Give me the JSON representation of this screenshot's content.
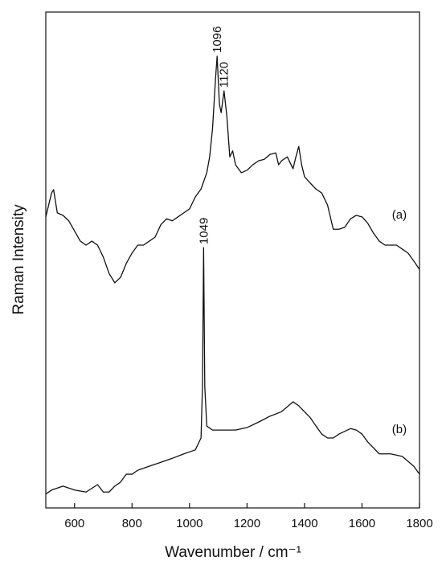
{
  "chart_data": {
    "type": "line",
    "xlabel": "Wavenumber / cm⁻¹",
    "ylabel": "Raman Intensity",
    "xlim": [
      500,
      1800
    ],
    "xticks": [
      600,
      800,
      1000,
      1200,
      1400,
      1600,
      1800
    ],
    "ylim": [
      0,
      100
    ],
    "series": [
      {
        "name": "(a)",
        "color": "#111111",
        "x": [
          500,
          520,
          527,
          540,
          560,
          580,
          620,
          640,
          660,
          680,
          700,
          720,
          740,
          760,
          780,
          800,
          820,
          840,
          860,
          880,
          900,
          920,
          940,
          960,
          980,
          1000,
          1020,
          1040,
          1060,
          1070,
          1080,
          1090,
          1096,
          1104,
          1110,
          1120,
          1130,
          1140,
          1150,
          1160,
          1180,
          1200,
          1220,
          1240,
          1260,
          1280,
          1300,
          1310,
          1320,
          1340,
          1360,
          1370,
          1380,
          1390,
          1400,
          1420,
          1440,
          1460,
          1480,
          1500,
          1520,
          1540,
          1560,
          1580,
          1600,
          1620,
          1640,
          1660,
          1680,
          1700,
          1720,
          1740,
          1760,
          1780,
          1800
        ],
        "values": [
          58.7,
          63.5,
          64.2,
          59.5,
          59.0,
          57.9,
          53.8,
          53.0,
          53.8,
          53.0,
          50.6,
          47.3,
          45.4,
          46.5,
          49.3,
          51.4,
          53.0,
          53.0,
          53.8,
          54.6,
          57.1,
          58.3,
          57.9,
          58.7,
          59.5,
          60.3,
          62.7,
          64.3,
          67.6,
          70.8,
          76.5,
          86.2,
          91.1,
          81.4,
          79.7,
          84.1,
          78.9,
          70.8,
          72.0,
          69.2,
          67.6,
          68.1,
          69.2,
          70.0,
          70.3,
          71.3,
          71.6,
          69.2,
          70.0,
          70.8,
          68.4,
          70.8,
          72.9,
          69.2,
          66.8,
          65.5,
          64.3,
          63.5,
          61.1,
          56.2,
          56.2,
          56.6,
          58.3,
          59.0,
          58.7,
          57.4,
          55.4,
          53.8,
          53.0,
          53.0,
          53.0,
          52.2,
          51.4,
          49.8,
          48.1
        ]
      },
      {
        "name": "(b)",
        "color": "#111111",
        "x": [
          500,
          520,
          560,
          600,
          640,
          680,
          700,
          720,
          740,
          760,
          780,
          800,
          820,
          860,
          900,
          940,
          980,
          1020,
          1040,
          1045,
          1049,
          1053,
          1060,
          1080,
          1120,
          1160,
          1200,
          1240,
          1280,
          1320,
          1360,
          1380,
          1400,
          1420,
          1440,
          1460,
          1480,
          1500,
          1520,
          1560,
          1580,
          1600,
          1620,
          1660,
          1700,
          1740,
          1780,
          1800
        ],
        "values": [
          2.8,
          3.6,
          4.4,
          3.6,
          3.2,
          4.7,
          3.2,
          3.2,
          4.4,
          5.2,
          6.8,
          6.8,
          7.6,
          8.4,
          9.2,
          10.0,
          10.9,
          11.7,
          14.1,
          24.6,
          52.5,
          24.6,
          16.5,
          15.7,
          15.7,
          15.7,
          16.2,
          17.3,
          18.5,
          19.4,
          21.4,
          20.6,
          19.4,
          18.2,
          16.5,
          14.9,
          14.1,
          14.1,
          14.9,
          16.0,
          15.7,
          14.9,
          13.3,
          10.9,
          10.9,
          10.4,
          8.4,
          6.8
        ]
      }
    ],
    "peak_labels": [
      {
        "text": "1096",
        "x": 1096,
        "y": 91.1
      },
      {
        "text": "1120",
        "x": 1120,
        "y": 84.1
      },
      {
        "text": "1049",
        "x": 1049,
        "y": 52.5
      }
    ],
    "curve_labels": [
      {
        "text": "(a)",
        "x": 1730,
        "y": 59.0
      },
      {
        "text": "(b)",
        "x": 1730,
        "y": 15.7
      }
    ]
  }
}
